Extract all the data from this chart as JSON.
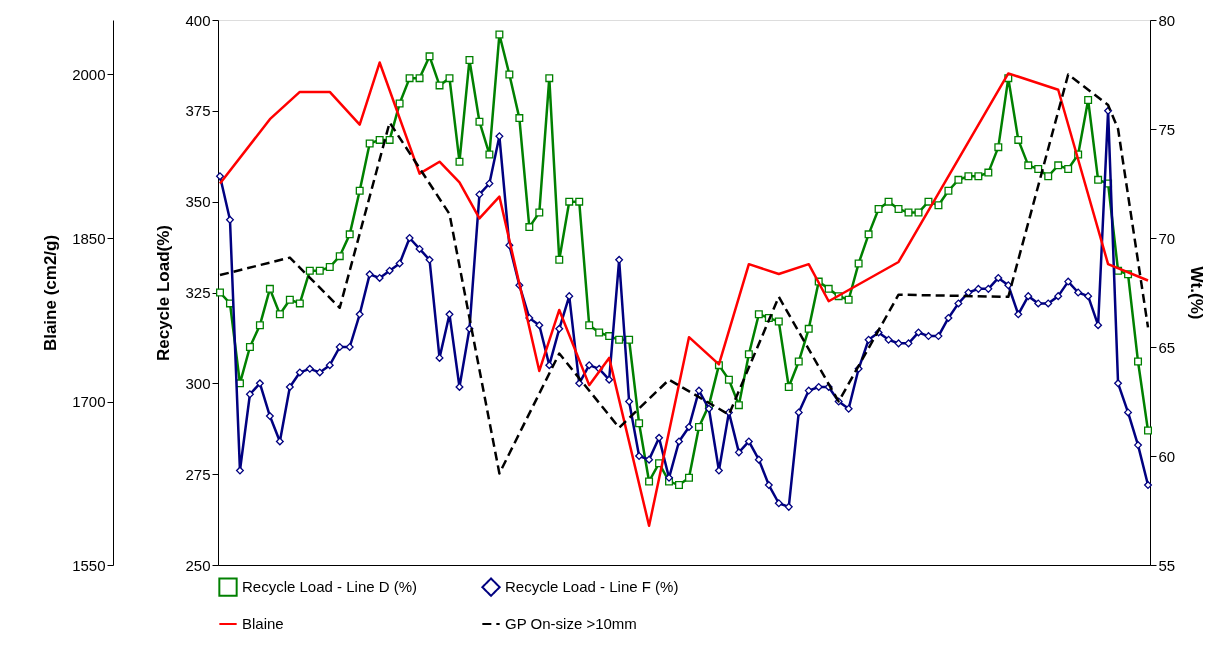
{
  "chart_data": {
    "type": "line",
    "ylabel": "Recycle Load(%)",
    "y2label": "Wt.(%)",
    "y3label": "Blaine (cm2/g)",
    "categories": [
      null,
      null,
      null,
      null,
      null,
      null,
      null,
      null,
      null,
      null,
      null,
      null,
      null,
      null,
      null,
      null,
      null,
      null,
      null,
      null,
      null,
      null,
      null,
      null,
      null,
      null,
      null,
      null,
      null,
      null,
      null,
      null,
      null,
      null,
      null,
      null,
      null,
      null,
      null,
      null,
      null,
      null,
      null,
      null,
      null,
      null,
      null,
      null,
      null,
      null,
      null,
      null,
      null,
      null,
      null,
      null,
      null,
      null,
      null,
      null,
      null,
      null,
      null,
      null,
      null,
      null,
      null,
      null,
      null,
      null,
      null,
      null,
      null,
      null,
      null,
      null,
      null,
      null,
      null,
      null,
      null,
      null,
      null,
      null,
      null,
      null,
      null,
      null,
      null,
      null,
      null,
      null,
      null,
      null
    ],
    "ylim": [
      250,
      400
    ],
    "yticks": [
      250,
      275,
      300,
      325,
      350,
      375,
      400
    ],
    "y2lim": [
      55,
      80
    ],
    "y2ticks": [
      55,
      60,
      65,
      70,
      75,
      80
    ],
    "y3lim": [
      1550,
      2050
    ],
    "y3ticks": [
      1550,
      1700,
      1850,
      2000
    ],
    "tick_labels": "y",
    "legend": "bottom",
    "series": [
      {
        "name": "Recycle Load - Line D (%)",
        "color": "#008000",
        "marker": "square",
        "values": [
          325,
          322,
          300,
          310,
          316,
          326,
          319,
          323,
          322,
          331,
          331,
          332,
          335,
          341,
          353,
          366,
          367,
          367,
          377,
          384,
          384,
          390,
          382,
          384,
          361,
          389,
          372,
          363,
          396,
          385,
          373,
          343,
          347,
          384,
          334,
          350,
          350,
          316,
          314,
          313,
          312,
          312,
          289,
          273,
          278,
          273,
          272,
          274,
          288,
          294,
          305,
          301,
          294,
          308,
          319,
          318,
          317,
          299,
          306,
          315,
          328,
          326,
          324,
          323,
          333,
          341,
          348,
          350,
          348,
          347,
          347,
          350,
          349,
          353,
          356,
          357,
          357,
          358,
          365,
          384,
          367,
          360,
          359,
          357,
          360,
          359,
          363,
          378,
          356,
          355,
          331,
          330,
          306,
          287
        ]
      },
      {
        "name": "Recycle Load - Line F (%)",
        "color": "#000080",
        "marker": "diamond",
        "values": [
          357,
          345,
          276,
          297,
          300,
          291,
          284,
          299,
          303,
          304,
          303,
          305,
          310,
          310,
          319,
          330,
          329,
          331,
          333,
          340,
          337,
          334,
          307,
          319,
          299,
          315,
          352,
          355,
          368,
          338,
          327,
          318,
          316,
          305,
          315,
          324,
          300,
          305,
          304,
          301,
          334,
          295,
          280,
          279,
          285,
          274,
          284,
          288,
          298,
          293,
          276,
          292,
          281,
          284,
          279,
          272,
          267,
          266,
          292,
          298,
          299,
          299,
          295,
          293,
          304,
          312,
          314,
          312,
          311,
          311,
          314,
          313,
          313,
          318,
          322,
          325,
          326,
          326,
          329,
          327,
          319,
          324,
          322,
          322,
          324,
          328,
          325,
          324,
          316,
          375,
          300,
          292,
          283,
          272
        ]
      },
      {
        "name": "Blaine",
        "color": "#ff0000",
        "marker": "none",
        "axis": "y3",
        "values": [
          1900,
          null,
          null,
          null,
          null,
          1959,
          null,
          null,
          1984,
          null,
          null,
          1984,
          null,
          null,
          1954,
          null,
          2011,
          null,
          null,
          null,
          1909,
          null,
          1920,
          null,
          1901,
          null,
          1868,
          null,
          1888,
          null,
          null,
          null,
          1728,
          null,
          1784,
          null,
          null,
          1715,
          null,
          1740,
          null,
          null,
          null,
          1586,
          null,
          null,
          null,
          1759,
          null,
          null,
          1734,
          null,
          null,
          1826,
          null,
          null,
          1817,
          null,
          null,
          1826,
          null,
          1792,
          null,
          null,
          null,
          null,
          null,
          null,
          1828,
          null,
          null,
          null,
          null,
          null,
          null,
          null,
          null,
          null,
          null,
          2001,
          null,
          null,
          null,
          null,
          1986,
          null,
          null,
          null,
          null,
          1826,
          null,
          null,
          null,
          1811
        ]
      },
      {
        "name": "GP On-size >10mm",
        "color": "#000000",
        "marker": "none",
        "line_style": "dashed",
        "axis": "y2",
        "values": [
          68.3,
          null,
          null,
          null,
          null,
          null,
          null,
          69.1,
          null,
          null,
          null,
          null,
          66.8,
          null,
          null,
          null,
          null,
          75.3,
          null,
          null,
          null,
          null,
          null,
          71.1,
          null,
          null,
          null,
          null,
          59.2,
          null,
          null,
          null,
          null,
          null,
          64.7,
          null,
          null,
          null,
          null,
          null,
          61.3,
          null,
          null,
          null,
          null,
          63.5,
          null,
          null,
          null,
          null,
          null,
          61.9,
          null,
          null,
          null,
          null,
          67.3,
          null,
          null,
          null,
          null,
          null,
          62.5,
          null,
          null,
          null,
          null,
          null,
          67.4,
          null,
          null,
          null,
          null,
          null,
          null,
          null,
          null,
          null,
          null,
          67.3,
          null,
          null,
          null,
          null,
          null,
          77.5,
          null,
          null,
          null,
          76.1,
          75.0,
          null,
          null,
          65.9
        ]
      }
    ]
  }
}
